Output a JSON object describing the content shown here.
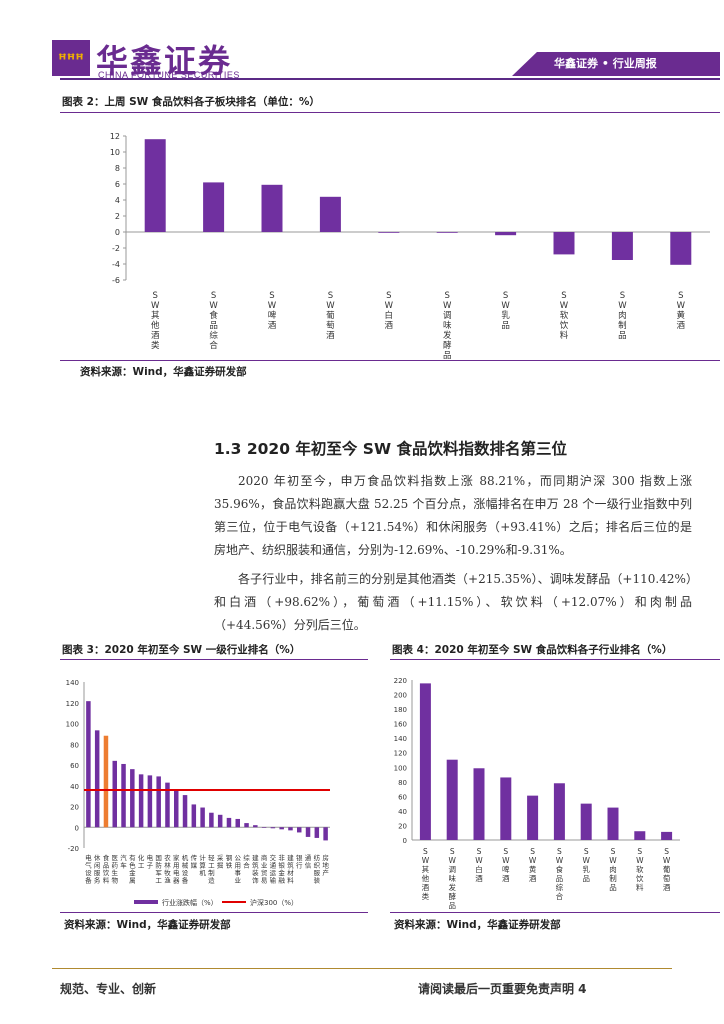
{
  "header": {
    "logo_cn": "华鑫证券",
    "logo_en": "CHINA FORTUNE SECURITIES",
    "tag": "华鑫证券 • 行业周报"
  },
  "fig2": {
    "title": "图表 2：上周 SW 食品饮料各子板块排名（单位：%）",
    "source": "资料来源：Wind，华鑫证券研发部"
  },
  "section": {
    "title": "1.3 2020 年初至今 SW 食品饮料指数排名第三位",
    "para1": "2020 年初至今，申万食品饮料指数上涨 88.21%，而同期沪深 300 指数上涨 35.96%，食品饮料跑赢大盘 52.25 个百分点，涨幅排名在申万 28 个一级行业指数中列第三位，位于电气设备（+121.54%）和休闲服务（+93.41%）之后；排名后三位的是房地产、纺织服装和通信，分别为-12.69%、-10.29%和-9.31%。",
    "para2": "各子行业中，排名前三的分别是其他酒类（+215.35%）、调味发酵品（+110.42%）和白酒（+98.62%），葡萄酒（+11.15%）、软饮料（+12.07%）和肉制品（+44.56%）分列后三位。"
  },
  "fig3": {
    "title": "图表 3：2020 年初至今 SW 一级行业排名（%）",
    "source": "资料来源：Wind，华鑫证券研发部",
    "legend_bar": "行业涨跌幅（%）",
    "legend_line": "沪深300（%）"
  },
  "fig4": {
    "title": "图表 4：2020 年初至今 SW 食品饮料各子行业排名（%）",
    "source": "资料来源：Wind，华鑫证券研发部"
  },
  "footer": {
    "left": "规范、专业、创新",
    "right": "请阅读最后一页重要免责声明 4"
  },
  "colors": {
    "purple": "#7030a0",
    "orange": "#ed7d31",
    "red": "#e00000"
  },
  "chart_data": [
    {
      "type": "bar",
      "title": "上周 SW 食品饮料各子板块排名（单位：%）",
      "categories": [
        "SW其他酒类",
        "SW食品综合",
        "SW啤酒",
        "SW葡萄酒",
        "SW白酒",
        "SW调味发酵品",
        "SW乳品",
        "SW软饮料",
        "SW肉制品",
        "SW黄酒"
      ],
      "values": [
        11.6,
        6.2,
        5.9,
        4.4,
        0.0,
        -0.1,
        -0.4,
        -2.8,
        -3.5,
        -4.1
      ],
      "ylim": [
        -6,
        12
      ],
      "yticks": [
        -6,
        -4,
        -2,
        0,
        2,
        4,
        6,
        8,
        10,
        12
      ]
    },
    {
      "type": "bar",
      "title": "2020 年初至今 SW 一级行业排名（%）",
      "categories": [
        "电气设备",
        "休闲服务",
        "食品饮料",
        "医药生物",
        "汽车",
        "有色金属",
        "化工",
        "电子",
        "国防军工",
        "农林牧渔",
        "家用电器",
        "机械设备",
        "传媒",
        "计算机",
        "轻工制造",
        "采掘",
        "钢铁",
        "公用事业",
        "综合",
        "建筑装饰",
        "商业贸易",
        "交通运输",
        "非银金融",
        "建筑材料",
        "银行",
        "通信",
        "纺织服装",
        "房地产"
      ],
      "values": [
        121.54,
        93.41,
        88.21,
        64,
        61,
        56,
        51,
        50,
        49,
        43,
        35,
        31,
        22,
        19,
        14,
        12,
        9,
        8,
        4,
        2,
        0,
        -1,
        -2,
        -3,
        -5,
        -9.31,
        -10.29,
        -12.69
      ],
      "highlight_index": 2,
      "reference_line": 35.96,
      "ylim": [
        -20,
        140
      ],
      "yticks": [
        -20,
        0,
        20,
        40,
        60,
        80,
        100,
        120,
        140
      ]
    },
    {
      "type": "bar",
      "title": "2020 年初至今 SW 食品饮料各子行业排名（%）",
      "categories": [
        "SW其他酒类",
        "SW调味发酵品",
        "SW白酒",
        "SW啤酒",
        "SW黄酒",
        "SW食品综合",
        "SW乳品",
        "SW肉制品",
        "SW软饮料",
        "SW葡萄酒"
      ],
      "values": [
        215.35,
        110.42,
        98.62,
        86,
        61,
        78,
        50,
        44.56,
        12.07,
        11.15
      ],
      "ylim": [
        0,
        220
      ],
      "yticks": [
        0,
        20,
        40,
        60,
        80,
        100,
        120,
        140,
        160,
        180,
        200,
        220
      ]
    }
  ]
}
